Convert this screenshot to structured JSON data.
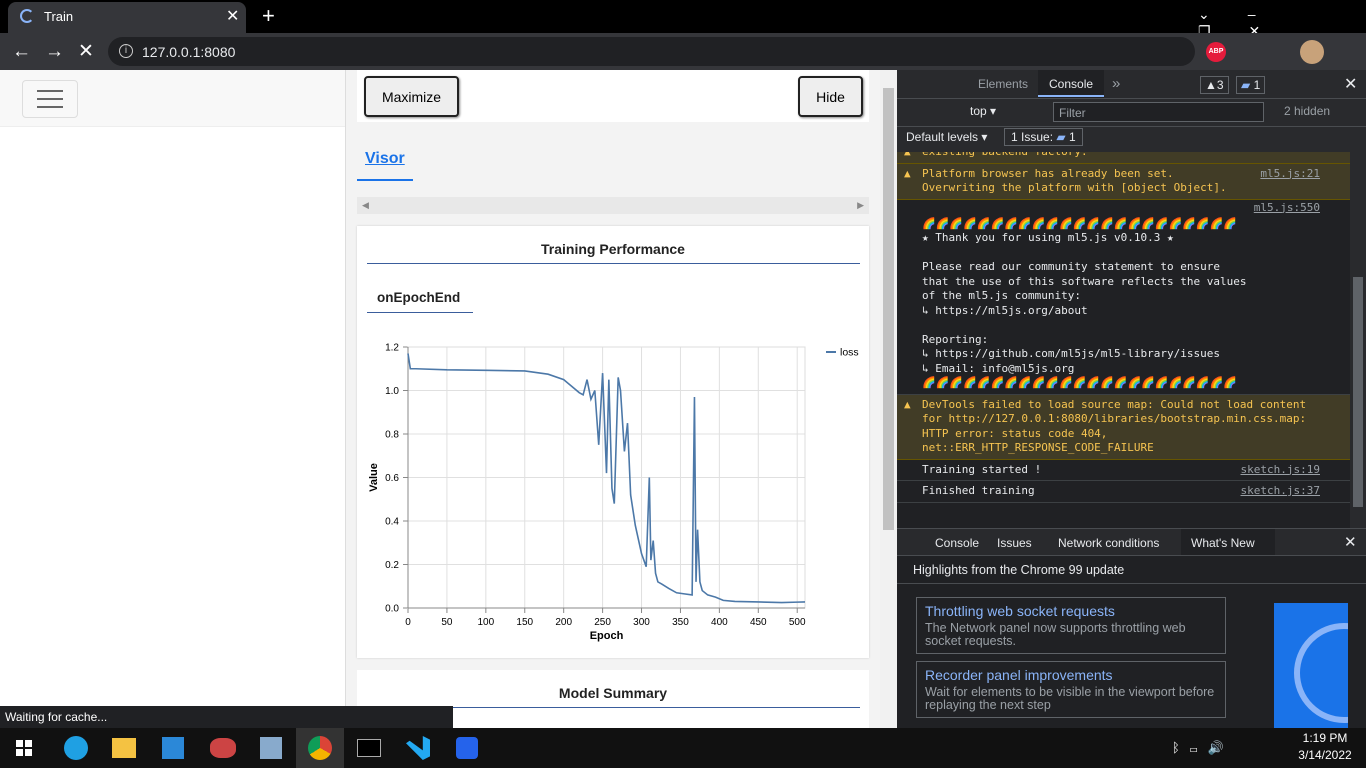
{
  "browser": {
    "tab_title": "Train",
    "url": "127.0.0.1:8080",
    "status": "Waiting for cache..."
  },
  "page": {
    "maximize": "Maximize",
    "hide": "Hide",
    "visor_link": "Visor",
    "section_title": "Training Performance",
    "subtitle": "onEpochEnd",
    "next_section": "Model Summary"
  },
  "chart_data": {
    "type": "line",
    "x_label": "Epoch",
    "y_label": "Value",
    "x": [
      0,
      3,
      10,
      50,
      100,
      150,
      180,
      200,
      210,
      220,
      225,
      230,
      235,
      240,
      245,
      250,
      255,
      258,
      262,
      265,
      270,
      273,
      278,
      282,
      286,
      292,
      300,
      306,
      310,
      312,
      315,
      318,
      321,
      326,
      335,
      345,
      355,
      365,
      368,
      370,
      372,
      375,
      378,
      385,
      395,
      405,
      420,
      450,
      480,
      500,
      510
    ],
    "series": [
      {
        "name": "loss",
        "color": "#4c78a8",
        "values": [
          1.17,
          1.1,
          1.1,
          1.095,
          1.093,
          1.09,
          1.075,
          1.05,
          1.02,
          0.99,
          0.98,
          1.05,
          0.96,
          1.0,
          0.75,
          1.08,
          0.62,
          1.05,
          0.55,
          0.48,
          1.06,
          1.0,
          0.72,
          0.85,
          0.52,
          0.38,
          0.25,
          0.19,
          0.6,
          0.22,
          0.31,
          0.16,
          0.12,
          0.11,
          0.09,
          0.07,
          0.065,
          0.06,
          0.97,
          0.12,
          0.36,
          0.12,
          0.08,
          0.06,
          0.05,
          0.035,
          0.03,
          0.028,
          0.025,
          0.027,
          0.028
        ]
      }
    ],
    "xlim": [
      0,
      510
    ],
    "ylim": [
      0,
      1.2
    ],
    "xticks": [
      0,
      50,
      100,
      150,
      200,
      250,
      300,
      350,
      400,
      450,
      500
    ],
    "yticks": [
      {
        "value": 0,
        "label": "0.0"
      },
      0.2,
      0.4,
      0.6,
      0.8,
      {
        "value": 1,
        "label": "1.0"
      },
      1.2
    ],
    "grid": true,
    "legend": "right"
  },
  "devtools": {
    "tabs": [
      "Elements",
      "Console"
    ],
    "warnings": "3",
    "messages_count": "1",
    "context": "top",
    "filter": "Filter",
    "hidden": "2 hidden",
    "levels": "Default levels",
    "issues": "1 Issue:",
    "issues_count": "1",
    "console": [
      {
        "level": "warning",
        "lines": [
          "existing backend factory."
        ]
      },
      {
        "level": "warning",
        "lines": [
          "Platform browser has already been set.",
          "Overwriting the platform with [object Object]."
        ],
        "source": "ml5.js:21"
      },
      {
        "level": "log",
        "source": "ml5.js:550",
        "paragraphs": [
          [
            "🌈🌈🌈🌈🌈🌈🌈🌈🌈🌈🌈🌈🌈🌈🌈🌈🌈🌈🌈🌈🌈🌈🌈",
            "★ Thank you for using ml5.js v0.10.3 ★"
          ],
          [
            "Please read our community statement to ensure",
            "that the use of this software reflects the values",
            "of the ml5.js community:",
            "↳ https://ml5js.org/about"
          ],
          [
            "Reporting:",
            "↳ https://github.com/ml5js/ml5-library/issues",
            "↳ Email: info@ml5js.org",
            "🌈🌈🌈🌈🌈🌈🌈🌈🌈🌈🌈🌈🌈🌈🌈🌈🌈🌈🌈🌈🌈🌈🌈"
          ]
        ]
      },
      {
        "level": "warning",
        "lines": [
          "DevTools failed to load source map: Could not load content",
          "for http://127.0.0.1:8080/libraries/bootstrap.min.css.map:",
          "HTTP error: status code 404,",
          "net::ERR_HTTP_RESPONSE_CODE_FAILURE"
        ]
      },
      {
        "level": "log",
        "lines": [
          "Training started !"
        ],
        "source": "sketch.js:19"
      },
      {
        "level": "log",
        "lines": [
          "Finished training"
        ],
        "source": "sketch.js:37"
      }
    ],
    "drawer_tabs": [
      "Console",
      "Issues",
      "Network conditions",
      "What's New"
    ],
    "whats_new": {
      "heading": "Highlights from the Chrome 99 update",
      "cards": [
        {
          "title": "Throttling web socket requests",
          "text": "The Network panel now supports throttling web socket requests."
        },
        {
          "title": "Recorder panel improvements",
          "text": "Wait for elements to be visible in the viewport before replaying the next step"
        }
      ]
    }
  },
  "taskbar": {
    "time": "1:19 PM",
    "date": "3/14/2022"
  }
}
